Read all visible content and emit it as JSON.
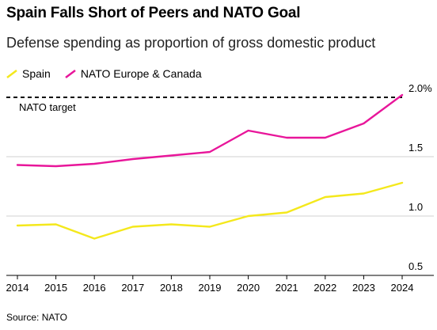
{
  "header": {
    "title": "Spain Falls Short of Peers and NATO Goal",
    "subtitle": "Defense spending as proportion of gross domestic product"
  },
  "source": "Source: NATO",
  "colors": {
    "spain": "#f4e81c",
    "nato": "#e8169a",
    "grid": "#d0d0d0",
    "target": "#000000"
  },
  "chart_data": {
    "type": "line",
    "x": [
      2014,
      2015,
      2016,
      2017,
      2018,
      2019,
      2020,
      2021,
      2022,
      2023,
      2024
    ],
    "series": [
      {
        "name": "Spain",
        "color": "#f4e81c",
        "values": [
          0.92,
          0.93,
          0.81,
          0.91,
          0.93,
          0.91,
          1.0,
          1.03,
          1.16,
          1.19,
          1.28
        ]
      },
      {
        "name": "NATO Europe & Canada",
        "color": "#e8169a",
        "values": [
          1.43,
          1.42,
          1.44,
          1.48,
          1.51,
          1.54,
          1.72,
          1.66,
          1.66,
          1.78,
          2.02
        ]
      }
    ],
    "yticks": [
      {
        "value": 2.0,
        "label": "2.0%"
      },
      {
        "value": 1.5,
        "label": "1.5"
      },
      {
        "value": 1.0,
        "label": "1.0"
      },
      {
        "value": 0.5,
        "label": "0.5"
      }
    ],
    "ylim": [
      0.5,
      2.0
    ],
    "xlim": [
      2014,
      2024
    ],
    "target": {
      "value": 2.0,
      "label": "NATO target"
    },
    "grid": true,
    "legend_position": "top-left"
  }
}
